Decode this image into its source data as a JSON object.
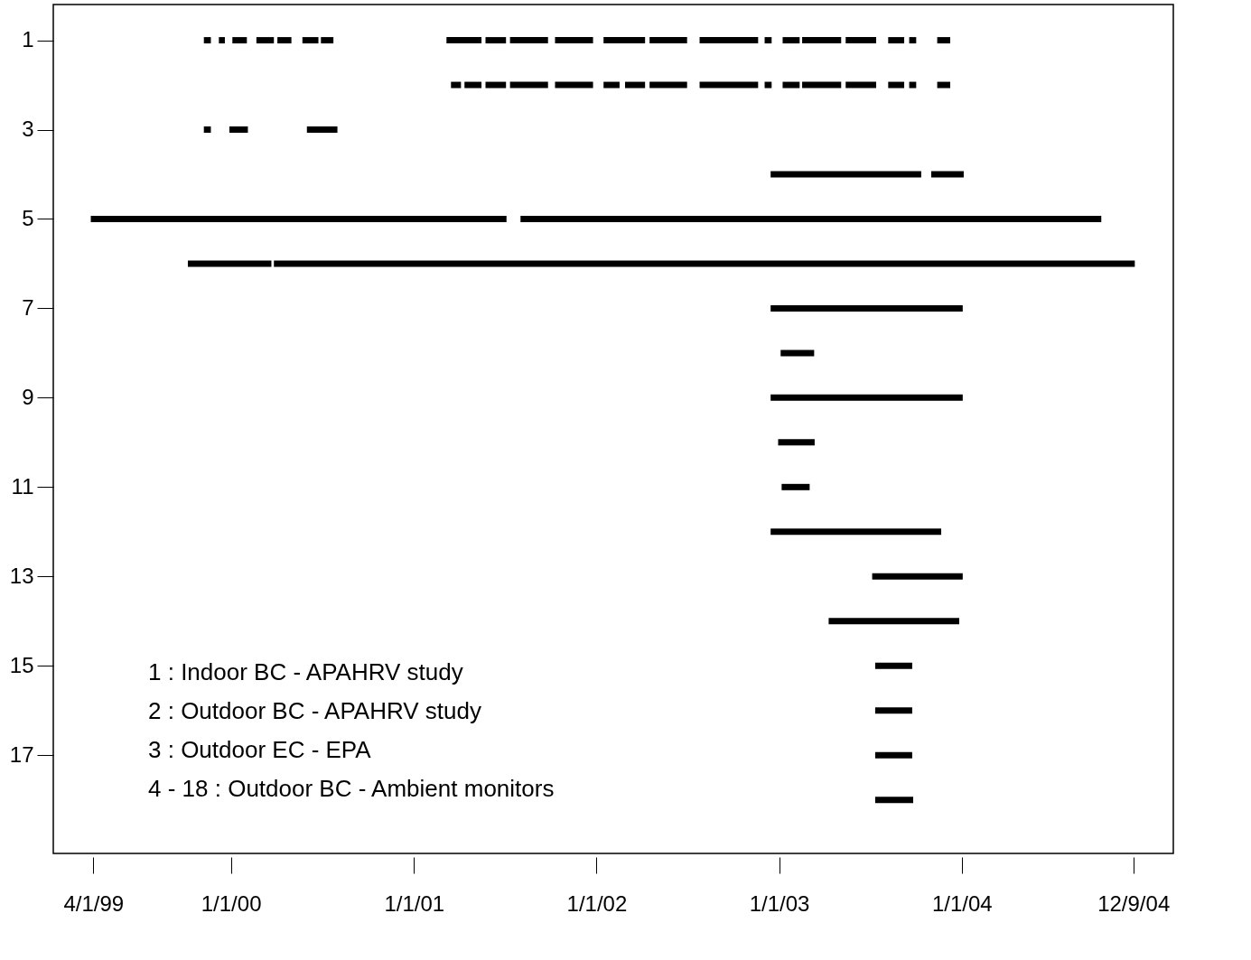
{
  "chart_data": {
    "type": "line",
    "xlim": [
      "1999-01-11",
      "2005-02-27"
    ],
    "xticks": [
      {
        "value": "1999-04-01",
        "label": "4/1/99"
      },
      {
        "value": "2000-01-01",
        "label": "1/1/00"
      },
      {
        "value": "2001-01-01",
        "label": "1/1/01"
      },
      {
        "value": "2002-01-01",
        "label": "1/1/02"
      },
      {
        "value": "2003-01-01",
        "label": "1/1/03"
      },
      {
        "value": "2004-01-01",
        "label": "1/1/04"
      },
      {
        "value": "2004-12-09",
        "label": "12/9/04"
      }
    ],
    "ylim": [
      19.2,
      0.2
    ],
    "yticks": [
      1,
      3,
      5,
      7,
      9,
      11,
      13,
      15,
      17
    ],
    "grid": false,
    "legend": false,
    "line_style": "solid",
    "annotations": [
      "1 : Indoor BC - APAHRV study",
      "2 : Outdoor BC - APAHRV study",
      "3 : Outdoor EC - EPA",
      "4 - 18 : Outdoor BC - Ambient monitors"
    ],
    "series": [
      {
        "color": "#000000",
        "x": [
          "1999-11-08",
          "1999-11-22"
        ],
        "values": [
          1,
          1
        ]
      },
      {
        "color": "#000000",
        "x": [
          "1999-12-08",
          "1999-12-20"
        ],
        "values": [
          1,
          1
        ]
      },
      {
        "color": "#000000",
        "x": [
          "2000-01-04",
          "2000-02-02"
        ],
        "values": [
          1,
          1
        ]
      },
      {
        "color": "#000000",
        "x": [
          "2000-02-21",
          "2000-03-27"
        ],
        "values": [
          1,
          1
        ]
      },
      {
        "color": "#000000",
        "x": [
          "2000-04-03",
          "2000-05-01"
        ],
        "values": [
          1,
          1
        ]
      },
      {
        "color": "#000000",
        "x": [
          "2000-05-23",
          "2000-06-24"
        ],
        "values": [
          1,
          1
        ]
      },
      {
        "color": "#000000",
        "x": [
          "2000-06-29",
          "2000-07-24"
        ],
        "values": [
          1,
          1
        ]
      },
      {
        "color": "#000000",
        "x": [
          "2001-03-07",
          "2001-05-16"
        ],
        "values": [
          1,
          1
        ]
      },
      {
        "color": "#000000",
        "x": [
          "2001-05-24",
          "2001-07-04"
        ],
        "values": [
          1,
          1
        ]
      },
      {
        "color": "#000000",
        "x": [
          "2001-07-12",
          "2001-09-26"
        ],
        "values": [
          1,
          1
        ]
      },
      {
        "color": "#000000",
        "x": [
          "2001-10-10",
          "2001-12-25"
        ],
        "values": [
          1,
          1
        ]
      },
      {
        "color": "#000000",
        "x": [
          "2002-01-15",
          "2002-04-08"
        ],
        "values": [
          1,
          1
        ]
      },
      {
        "color": "#000000",
        "x": [
          "2002-04-17",
          "2002-07-01"
        ],
        "values": [
          1,
          1
        ]
      },
      {
        "color": "#000000",
        "x": [
          "2002-07-26",
          "2002-11-20"
        ],
        "values": [
          1,
          1
        ]
      },
      {
        "color": "#000000",
        "x": [
          "2002-12-03",
          "2002-12-17"
        ],
        "values": [
          1,
          1
        ]
      },
      {
        "color": "#000000",
        "x": [
          "2003-01-08",
          "2003-02-11"
        ],
        "values": [
          1,
          1
        ]
      },
      {
        "color": "#000000",
        "x": [
          "2003-02-16",
          "2003-05-05"
        ],
        "values": [
          1,
          1
        ]
      },
      {
        "color": "#000000",
        "x": [
          "2003-05-14",
          "2003-07-14"
        ],
        "values": [
          1,
          1
        ]
      },
      {
        "color": "#000000",
        "x": [
          "2003-08-07",
          "2003-09-08"
        ],
        "values": [
          1,
          1
        ]
      },
      {
        "color": "#000000",
        "x": [
          "2003-09-18",
          "2003-10-02"
        ],
        "values": [
          1,
          1
        ]
      },
      {
        "color": "#000000",
        "x": [
          "2003-11-13",
          "2003-12-09"
        ],
        "values": [
          1,
          1
        ]
      },
      {
        "color": "#000000",
        "x": [
          "2001-03-16",
          "2001-04-05"
        ],
        "values": [
          2,
          2
        ]
      },
      {
        "color": "#000000",
        "x": [
          "2001-04-12",
          "2001-05-16"
        ],
        "values": [
          2,
          2
        ]
      },
      {
        "color": "#000000",
        "x": [
          "2001-05-24",
          "2001-07-04"
        ],
        "values": [
          2,
          2
        ]
      },
      {
        "color": "#000000",
        "x": [
          "2001-07-12",
          "2001-09-26"
        ],
        "values": [
          2,
          2
        ]
      },
      {
        "color": "#000000",
        "x": [
          "2001-10-10",
          "2001-12-25"
        ],
        "values": [
          2,
          2
        ]
      },
      {
        "color": "#000000",
        "x": [
          "2002-01-15",
          "2002-02-16"
        ],
        "values": [
          2,
          2
        ]
      },
      {
        "color": "#000000",
        "x": [
          "2002-02-27",
          "2002-04-08"
        ],
        "values": [
          2,
          2
        ]
      },
      {
        "color": "#000000",
        "x": [
          "2002-04-17",
          "2002-07-01"
        ],
        "values": [
          2,
          2
        ]
      },
      {
        "color": "#000000",
        "x": [
          "2002-07-26",
          "2002-11-20"
        ],
        "values": [
          2,
          2
        ]
      },
      {
        "color": "#000000",
        "x": [
          "2002-12-03",
          "2002-12-17"
        ],
        "values": [
          2,
          2
        ]
      },
      {
        "color": "#000000",
        "x": [
          "2003-01-08",
          "2003-02-11"
        ],
        "values": [
          2,
          2
        ]
      },
      {
        "color": "#000000",
        "x": [
          "2003-02-16",
          "2003-05-05"
        ],
        "values": [
          2,
          2
        ]
      },
      {
        "color": "#000000",
        "x": [
          "2003-05-14",
          "2003-07-14"
        ],
        "values": [
          2,
          2
        ]
      },
      {
        "color": "#000000",
        "x": [
          "2003-08-07",
          "2003-09-08"
        ],
        "values": [
          2,
          2
        ]
      },
      {
        "color": "#000000",
        "x": [
          "2003-09-18",
          "2003-10-02"
        ],
        "values": [
          2,
          2
        ]
      },
      {
        "color": "#000000",
        "x": [
          "2003-11-13",
          "2003-12-09"
        ],
        "values": [
          2,
          2
        ]
      },
      {
        "color": "#000000",
        "x": [
          "1999-11-08",
          "1999-11-22"
        ],
        "values": [
          3,
          3
        ]
      },
      {
        "color": "#000000",
        "x": [
          "1999-12-29",
          "2000-02-04"
        ],
        "values": [
          3,
          3
        ]
      },
      {
        "color": "#000000",
        "x": [
          "2000-06-01",
          "2000-08-01"
        ],
        "values": [
          3,
          3
        ]
      },
      {
        "color": "#000000",
        "x": [
          "2002-12-15",
          "2003-10-12"
        ],
        "values": [
          4,
          4
        ]
      },
      {
        "color": "#000000",
        "x": [
          "2003-11-01",
          "2004-01-05"
        ],
        "values": [
          4,
          4
        ]
      },
      {
        "color": "#000000",
        "x": [
          "1999-03-27",
          "2001-07-05"
        ],
        "values": [
          5,
          5
        ]
      },
      {
        "color": "#000000",
        "x": [
          "2001-08-02",
          "2004-10-06"
        ],
        "values": [
          5,
          5
        ]
      },
      {
        "color": "#000000",
        "x": [
          "1999-10-07",
          "2000-03-22"
        ],
        "values": [
          6,
          6
        ]
      },
      {
        "color": "#000000",
        "x": [
          "2000-03-27",
          "2004-12-12"
        ],
        "values": [
          6,
          6
        ]
      },
      {
        "color": "#000000",
        "x": [
          "2002-12-15",
          "2004-01-03"
        ],
        "values": [
          7,
          7
        ]
      },
      {
        "color": "#000000",
        "x": [
          "2003-01-04",
          "2003-03-12"
        ],
        "values": [
          8,
          8
        ]
      },
      {
        "color": "#000000",
        "x": [
          "2002-12-15",
          "2004-01-03"
        ],
        "values": [
          9,
          9
        ]
      },
      {
        "color": "#000000",
        "x": [
          "2002-12-30",
          "2003-03-13"
        ],
        "values": [
          10,
          10
        ]
      },
      {
        "color": "#000000",
        "x": [
          "2003-01-06",
          "2003-03-03"
        ],
        "values": [
          11,
          11
        ]
      },
      {
        "color": "#000000",
        "x": [
          "2002-12-15",
          "2003-11-21"
        ],
        "values": [
          12,
          12
        ]
      },
      {
        "color": "#000000",
        "x": [
          "2003-07-06",
          "2004-01-03"
        ],
        "values": [
          13,
          13
        ]
      },
      {
        "color": "#000000",
        "x": [
          "2003-04-10",
          "2003-12-27"
        ],
        "values": [
          14,
          14
        ]
      },
      {
        "color": "#000000",
        "x": [
          "2003-07-12",
          "2003-09-24"
        ],
        "values": [
          15,
          15
        ]
      },
      {
        "color": "#000000",
        "x": [
          "2003-07-12",
          "2003-09-24"
        ],
        "values": [
          16,
          16
        ]
      },
      {
        "color": "#000000",
        "x": [
          "2003-07-12",
          "2003-09-24"
        ],
        "values": [
          17,
          17
        ]
      },
      {
        "color": "#000000",
        "x": [
          "2003-07-12",
          "2003-09-26"
        ],
        "values": [
          18,
          18
        ]
      }
    ]
  }
}
